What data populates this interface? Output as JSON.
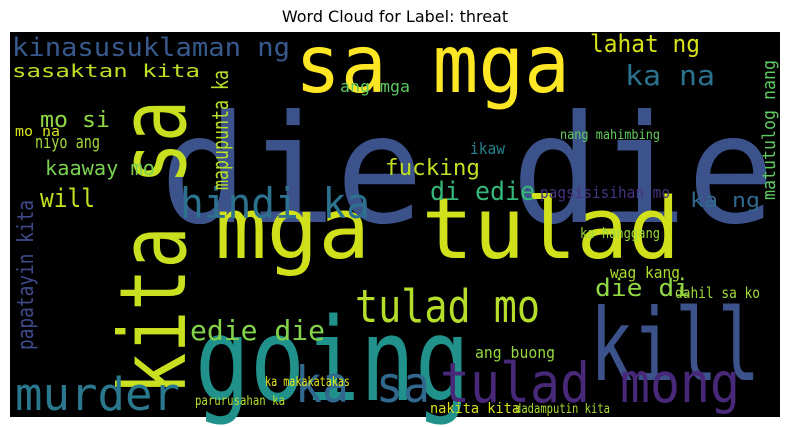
{
  "chart_data": {
    "type": "wordcloud",
    "title": "Word Cloud for Label: threat",
    "background": "#000000",
    "words": [
      {
        "text": "die die",
        "color": "#3b528b"
      },
      {
        "text": "going",
        "color": "#21918c"
      },
      {
        "text": "mga tulad",
        "color": "#d0e11c"
      },
      {
        "text": "sa mga",
        "color": "#fde725"
      },
      {
        "text": "kita sa",
        "color": "#c8e020"
      },
      {
        "text": "kill",
        "color": "#3b528b"
      },
      {
        "text": "tulad mong",
        "color": "#482878"
      },
      {
        "text": "murder",
        "color": "#2a788e"
      },
      {
        "text": "ka sa",
        "color": "#31688e"
      },
      {
        "text": "tulad mo",
        "color": "#b5de2b"
      },
      {
        "text": "hindi ka",
        "color": "#2c728e"
      },
      {
        "text": "kinasusuklaman ng",
        "color": "#38598c"
      },
      {
        "text": "sasaktan kita",
        "color": "#bddf26"
      },
      {
        "text": "lahat ng",
        "color": "#d8e219"
      },
      {
        "text": "ka na",
        "color": "#2c728e"
      },
      {
        "text": "mo si",
        "color": "#8fd744"
      },
      {
        "text": "edie die",
        "color": "#84d44b"
      },
      {
        "text": "die di",
        "color": "#90d743"
      },
      {
        "text": "di edie",
        "color": "#35b779"
      },
      {
        "text": "papatayin kita",
        "color": "#3e4a89"
      },
      {
        "text": "fucking",
        "color": "#c2df23"
      },
      {
        "text": "will",
        "color": "#c5e021"
      },
      {
        "text": "kaaway mo",
        "color": "#7ad151"
      },
      {
        "text": "ang mga",
        "color": "#5ec962"
      },
      {
        "text": "mapupunta ka",
        "color": "#b8de29"
      },
      {
        "text": "matutulog nang",
        "color": "#5ec962"
      },
      {
        "text": "pagsisisihan mo",
        "color": "#46327e"
      },
      {
        "text": "ka ng",
        "color": "#31688e"
      },
      {
        "text": "ang buong",
        "color": "#95d840"
      },
      {
        "text": "wag kang",
        "color": "#addc30"
      },
      {
        "text": "dahil sa ko",
        "color": "#a0da39"
      },
      {
        "text": "nakita kita",
        "color": "#d8e219"
      },
      {
        "text": "dadamputin kita",
        "color": "#a8db34"
      },
      {
        "text": "parurusahan ka",
        "color": "#b2dd2d"
      },
      {
        "text": "ka makakatakas",
        "color": "#e5e419"
      },
      {
        "text": "niyo ang",
        "color": "#a2da37"
      },
      {
        "text": "mo na",
        "color": "#d5e21a"
      },
      {
        "text": "ikaw",
        "color": "#26828e"
      },
      {
        "text": "ka hanggang",
        "color": "#9bd93c"
      },
      {
        "text": "nang mahimbing",
        "color": "#63cb5f"
      }
    ]
  }
}
